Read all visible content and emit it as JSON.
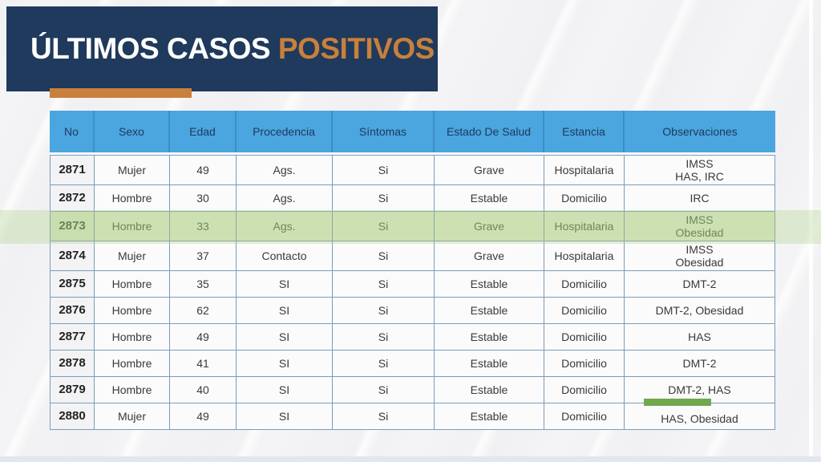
{
  "title": {
    "primary": "ÚLTIMOS CASOS",
    "accent": "POSITIVOS"
  },
  "colors": {
    "navy": "#1f3a5c",
    "orange_accent": "#c8803c",
    "table_header_blue": "#4ba5de",
    "table_border": "#7c9cb6",
    "highlight_row_bg": "#dbe8ca",
    "highlight_row_text": "#57684e",
    "marker_green": "#6fa84d"
  },
  "table": {
    "columns": [
      "No",
      "Sexo",
      "Edad",
      "Procedencia",
      "Síntomas",
      "Estado De Salud",
      "Estancia",
      "Observaciones"
    ],
    "rows": [
      {
        "no": "2871",
        "sexo": "Mujer",
        "edad": "49",
        "procedencia": "Ags.",
        "sintomas": "Si",
        "estado_de_salud": "Grave",
        "estancia": "Hospitalaria",
        "observaciones": "IMSS\nHAS, IRC",
        "highlighted": false,
        "marker": false
      },
      {
        "no": "2872",
        "sexo": "Hombre",
        "edad": "30",
        "procedencia": "Ags.",
        "sintomas": "Si",
        "estado_de_salud": "Estable",
        "estancia": "Domicilio",
        "observaciones": "IRC",
        "highlighted": false,
        "marker": false
      },
      {
        "no": "2873",
        "sexo": "Hombre",
        "edad": "33",
        "procedencia": "Ags.",
        "sintomas": "Si",
        "estado_de_salud": "Grave",
        "estancia": "Hospitalaria",
        "observaciones": "IMSS\nObesidad",
        "highlighted": true,
        "marker": false
      },
      {
        "no": "2874",
        "sexo": "Mujer",
        "edad": "37",
        "procedencia": "Contacto",
        "sintomas": "Si",
        "estado_de_salud": "Grave",
        "estancia": "Hospitalaria",
        "observaciones": "IMSS\nObesidad",
        "highlighted": false,
        "marker": false
      },
      {
        "no": "2875",
        "sexo": "Hombre",
        "edad": "35",
        "procedencia": "SI",
        "sintomas": "Si",
        "estado_de_salud": "Estable",
        "estancia": "Domicilio",
        "observaciones": "DMT-2",
        "highlighted": false,
        "marker": false
      },
      {
        "no": "2876",
        "sexo": "Hombre",
        "edad": "62",
        "procedencia": "SI",
        "sintomas": "Si",
        "estado_de_salud": "Estable",
        "estancia": "Domicilio",
        "observaciones": "DMT-2, Obesidad",
        "highlighted": false,
        "marker": false
      },
      {
        "no": "2877",
        "sexo": "Hombre",
        "edad": "49",
        "procedencia": "SI",
        "sintomas": "Si",
        "estado_de_salud": "Estable",
        "estancia": "Domicilio",
        "observaciones": "HAS",
        "highlighted": false,
        "marker": false
      },
      {
        "no": "2878",
        "sexo": "Hombre",
        "edad": "41",
        "procedencia": "SI",
        "sintomas": "Si",
        "estado_de_salud": "Estable",
        "estancia": "Domicilio",
        "observaciones": "DMT-2",
        "highlighted": false,
        "marker": false
      },
      {
        "no": "2879",
        "sexo": "Hombre",
        "edad": "40",
        "procedencia": "SI",
        "sintomas": "Si",
        "estado_de_salud": "Estable",
        "estancia": "Domicilio",
        "observaciones": "DMT-2, HAS",
        "highlighted": false,
        "marker": false
      },
      {
        "no": "2880",
        "sexo": "Mujer",
        "edad": "49",
        "procedencia": "SI",
        "sintomas": "Si",
        "estado_de_salud": "Estable",
        "estancia": "Domicilio",
        "observaciones": "HAS, Obesidad",
        "highlighted": false,
        "marker": true
      }
    ]
  }
}
